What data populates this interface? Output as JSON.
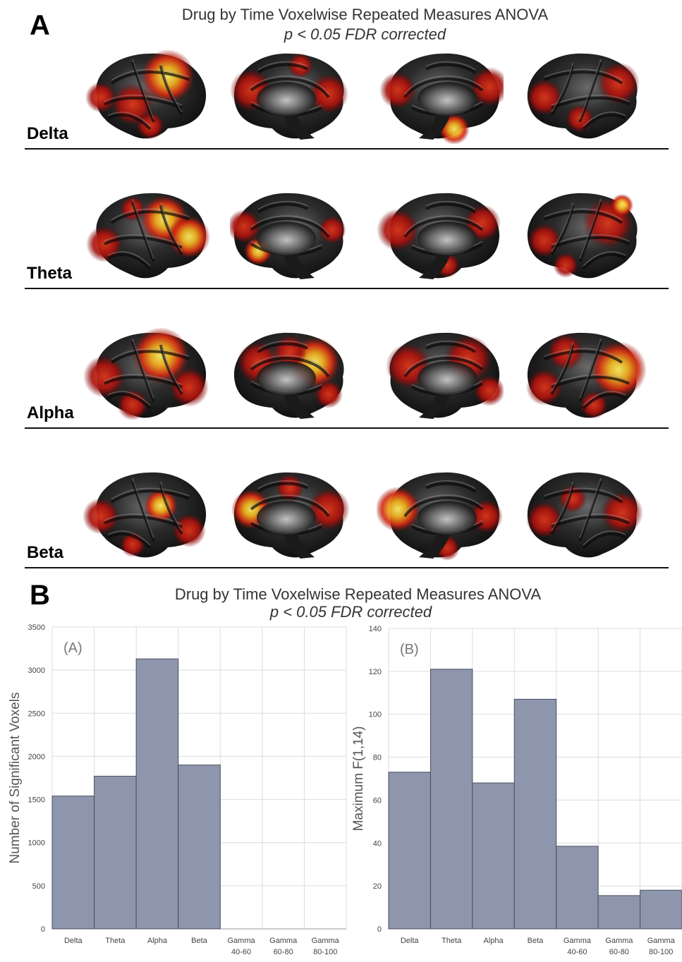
{
  "panel_a": {
    "letter": "A",
    "title": "Drug by Time Voxelwise Repeated Measures ANOVA",
    "subtitle": "p < 0.05 FDR corrected",
    "bands": [
      {
        "label": "Delta"
      },
      {
        "label": "Theta"
      },
      {
        "label": "Alpha"
      },
      {
        "label": "Beta"
      }
    ],
    "colors": {
      "cortex": "#2a2a2a",
      "activation_low": "#b3140f",
      "activation_mid": "#e8501a",
      "activation_high": "#ffe23a"
    }
  },
  "panel_b": {
    "letter": "B",
    "title": "Drug by Time Voxelwise Repeated Measures ANOVA",
    "subtitle": "p < 0.05 FDR corrected"
  },
  "chart_data": [
    {
      "type": "bar",
      "title": "",
      "tag": "(A)",
      "categories": [
        "Delta",
        "Theta",
        "Alpha",
        "Beta",
        "Gamma 40-60",
        "Gamma 60-80",
        "Gamma 80-100"
      ],
      "values": [
        1540,
        1770,
        3130,
        1900,
        0,
        0,
        0
      ],
      "ylabel": "Number of Significant Voxels",
      "xlabel": "",
      "ylim": [
        0,
        3500
      ],
      "yticks": [
        0,
        500,
        1000,
        1500,
        2000,
        2500,
        3000,
        3500
      ],
      "grid": true,
      "bar_color": "#8e96ad"
    },
    {
      "type": "bar",
      "title": "",
      "tag": "(B)",
      "categories": [
        "Delta",
        "Theta",
        "Alpha",
        "Beta",
        "Gamma 40-60",
        "Gamma 60-80",
        "Gamma 80-100"
      ],
      "values": [
        73,
        121,
        68,
        107,
        38.5,
        15.5,
        18
      ],
      "ylabel": "Maximum F(1,14)",
      "xlabel": "",
      "ylim": [
        0,
        140
      ],
      "yticks": [
        0,
        20,
        40,
        60,
        80,
        100,
        120,
        140
      ],
      "grid": true,
      "bar_color": "#8e96ad"
    }
  ]
}
